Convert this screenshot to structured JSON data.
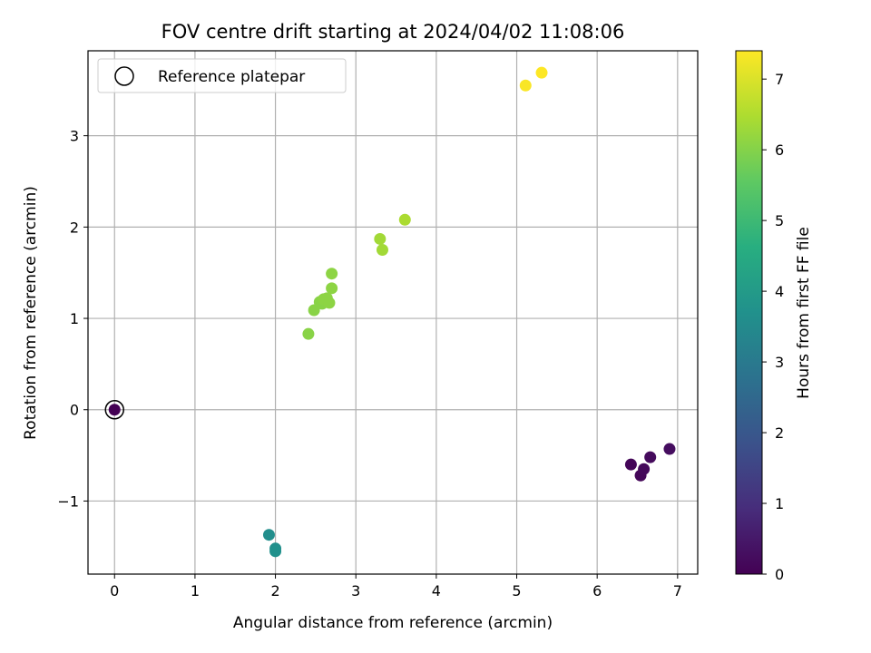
{
  "chart_data": {
    "type": "scatter",
    "title": "FOV centre drift starting at 2024/04/02 11:08:06",
    "xlabel": "Angular distance from reference (arcmin)",
    "ylabel": "Rotation from reference (arcmin)",
    "xlim": [
      -0.33,
      7.25
    ],
    "ylim": [
      -1.8,
      3.93
    ],
    "xticks": [
      0,
      1,
      2,
      3,
      4,
      5,
      6,
      7
    ],
    "yticks": [
      -1,
      0,
      1,
      2,
      3
    ],
    "grid": true,
    "legend": {
      "placement": "top-left",
      "entries": [
        "Reference platepar"
      ]
    },
    "colorbar": {
      "label": "Hours from first FF file",
      "colormap": "viridis",
      "range": [
        0,
        7.4
      ],
      "ticks": [
        0,
        1,
        2,
        3,
        4,
        5,
        6,
        7
      ]
    },
    "reference": {
      "x": 0,
      "y": 0,
      "hours": 0
    },
    "points": [
      {
        "x": 0.0,
        "y": 0.0,
        "hours": 0.0
      },
      {
        "x": 6.42,
        "y": -0.6,
        "hours": 0.1
      },
      {
        "x": 6.54,
        "y": -0.72,
        "hours": 0.1
      },
      {
        "x": 6.58,
        "y": -0.65,
        "hours": 0.15
      },
      {
        "x": 6.66,
        "y": -0.52,
        "hours": 0.2
      },
      {
        "x": 6.9,
        "y": -0.43,
        "hours": 0.25
      },
      {
        "x": 1.92,
        "y": -1.37,
        "hours": 3.6
      },
      {
        "x": 2.0,
        "y": -1.52,
        "hours": 3.65
      },
      {
        "x": 2.0,
        "y": -1.55,
        "hours": 3.7
      },
      {
        "x": 2.41,
        "y": 0.83,
        "hours": 6.05
      },
      {
        "x": 2.48,
        "y": 1.09,
        "hours": 6.05
      },
      {
        "x": 2.55,
        "y": 1.18,
        "hours": 6.05
      },
      {
        "x": 2.58,
        "y": 1.16,
        "hours": 6.05
      },
      {
        "x": 2.6,
        "y": 1.21,
        "hours": 6.1
      },
      {
        "x": 2.64,
        "y": 1.22,
        "hours": 6.1
      },
      {
        "x": 2.67,
        "y": 1.17,
        "hours": 6.1
      },
      {
        "x": 2.7,
        "y": 1.33,
        "hours": 6.1
      },
      {
        "x": 2.7,
        "y": 1.49,
        "hours": 6.1
      },
      {
        "x": 3.3,
        "y": 1.87,
        "hours": 6.35
      },
      {
        "x": 3.33,
        "y": 1.75,
        "hours": 6.35
      },
      {
        "x": 3.61,
        "y": 2.08,
        "hours": 6.45
      },
      {
        "x": 5.11,
        "y": 3.55,
        "hours": 7.35
      },
      {
        "x": 5.31,
        "y": 3.69,
        "hours": 7.4
      }
    ]
  }
}
